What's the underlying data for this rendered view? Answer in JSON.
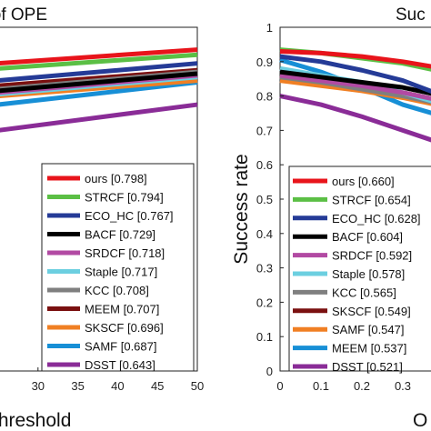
{
  "chart_data": [
    {
      "type": "line",
      "title": "s of OPE",
      "xlabel": "threshold",
      "ylabel": "",
      "xlim": [
        25,
        50
      ],
      "ylim": [
        0,
        1
      ],
      "x_ticks": [
        "30",
        "35",
        "40",
        "45",
        "50"
      ],
      "x": [
        25,
        50
      ],
      "series": [
        {
          "name": "ours [0.798]",
          "color": "#e8141b",
          "values": [
            0.895,
            0.935
          ]
        },
        {
          "name": "STRCF [0.794]",
          "color": "#5bbf45",
          "values": [
            0.88,
            0.92
          ]
        },
        {
          "name": "ECO_HC [0.767]",
          "color": "#253b97",
          "values": [
            0.845,
            0.895
          ]
        },
        {
          "name": "BACF [0.729]",
          "color": "#000000",
          "values": [
            0.815,
            0.865
          ]
        },
        {
          "name": "SRDCF [0.718]",
          "color": "#b24aa3",
          "values": [
            0.81,
            0.86
          ]
        },
        {
          "name": "Staple [0.717]",
          "color": "#6ccfe0",
          "values": [
            0.805,
            0.855
          ]
        },
        {
          "name": "KCC [0.708]",
          "color": "#7f7f7f",
          "values": [
            0.82,
            0.87
          ]
        },
        {
          "name": "MEEM [0.707]",
          "color": "#7a1010",
          "values": [
            0.83,
            0.875
          ]
        },
        {
          "name": "SKSCF [0.696]",
          "color": "#f07f23",
          "values": [
            0.8,
            0.845
          ]
        },
        {
          "name": "SAMF [0.687]",
          "color": "#178fd6",
          "values": [
            0.775,
            0.84
          ]
        },
        {
          "name": "DSST [0.643]",
          "color": "#8a2c97",
          "values": [
            0.7,
            0.775
          ]
        }
      ],
      "legend_position": "bottom-right"
    },
    {
      "type": "line",
      "title": "Suc",
      "xlabel": "O",
      "ylabel": "Success rate",
      "xlim": [
        0,
        0.4
      ],
      "ylim": [
        0,
        1
      ],
      "x_ticks": [
        "0",
        "0.1",
        "0.2",
        "0.3"
      ],
      "y_ticks": [
        "0",
        "0.1",
        "0.2",
        "0.3",
        "0.4",
        "0.5",
        "0.6",
        "0.7",
        "0.8",
        "0.9",
        "1"
      ],
      "x": [
        0,
        0.1,
        0.2,
        0.3,
        0.4
      ],
      "series": [
        {
          "name": "ours [0.660]",
          "color": "#e8141b",
          "values": [
            0.93,
            0.925,
            0.915,
            0.9,
            0.88
          ]
        },
        {
          "name": "STRCF [0.654]",
          "color": "#5bbf45",
          "values": [
            0.935,
            0.925,
            0.91,
            0.895,
            0.87
          ]
        },
        {
          "name": "ECO_HC [0.628]",
          "color": "#253b97",
          "values": [
            0.915,
            0.9,
            0.875,
            0.845,
            0.8
          ]
        },
        {
          "name": "BACF [0.604]",
          "color": "#000000",
          "values": [
            0.87,
            0.855,
            0.84,
            0.825,
            0.8
          ]
        },
        {
          "name": "SRDCF [0.592]",
          "color": "#b24aa3",
          "values": [
            0.86,
            0.845,
            0.83,
            0.81,
            0.785
          ]
        },
        {
          "name": "Staple [0.578]",
          "color": "#6ccfe0",
          "values": [
            0.88,
            0.86,
            0.84,
            0.81,
            0.775
          ]
        },
        {
          "name": "KCC [0.565]",
          "color": "#7f7f7f",
          "values": [
            0.855,
            0.84,
            0.82,
            0.8,
            0.775
          ]
        },
        {
          "name": "SKSCF [0.549]",
          "color": "#7a1010",
          "values": [
            0.86,
            0.845,
            0.83,
            0.81,
            0.785
          ]
        },
        {
          "name": "SAMF [0.547]",
          "color": "#f07f23",
          "values": [
            0.845,
            0.83,
            0.815,
            0.795,
            0.77
          ]
        },
        {
          "name": "MEEM [0.537]",
          "color": "#178fd6",
          "values": [
            0.905,
            0.87,
            0.825,
            0.775,
            0.74
          ]
        },
        {
          "name": "DSST [0.521]",
          "color": "#8a2c97",
          "values": [
            0.8,
            0.775,
            0.74,
            0.7,
            0.66
          ]
        }
      ],
      "legend_position": "bottom-left"
    }
  ]
}
